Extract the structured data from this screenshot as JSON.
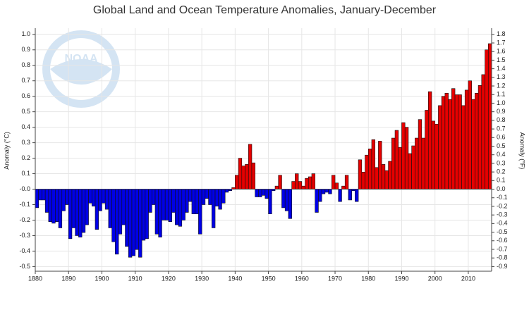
{
  "chart_data": {
    "type": "bar",
    "title": "Global Land and Ocean Temperature Anomalies, January-December",
    "y_label": "Anomaly (°C)",
    "y2_label": "Anomaly (°F)",
    "logo_text": "NOAA",
    "x": [
      1880,
      1881,
      1882,
      1883,
      1884,
      1885,
      1886,
      1887,
      1888,
      1889,
      1890,
      1891,
      1892,
      1893,
      1894,
      1895,
      1896,
      1897,
      1898,
      1899,
      1900,
      1901,
      1902,
      1903,
      1904,
      1905,
      1906,
      1907,
      1908,
      1909,
      1910,
      1911,
      1912,
      1913,
      1914,
      1915,
      1916,
      1917,
      1918,
      1919,
      1920,
      1921,
      1922,
      1923,
      1924,
      1925,
      1926,
      1927,
      1928,
      1929,
      1930,
      1931,
      1932,
      1933,
      1934,
      1935,
      1936,
      1937,
      1938,
      1939,
      1940,
      1941,
      1942,
      1943,
      1944,
      1945,
      1946,
      1947,
      1948,
      1949,
      1950,
      1951,
      1952,
      1953,
      1954,
      1955,
      1956,
      1957,
      1958,
      1959,
      1960,
      1961,
      1962,
      1963,
      1964,
      1965,
      1966,
      1967,
      1968,
      1969,
      1970,
      1971,
      1972,
      1973,
      1974,
      1975,
      1976,
      1977,
      1978,
      1979,
      1980,
      1981,
      1982,
      1983,
      1984,
      1985,
      1986,
      1987,
      1988,
      1989,
      1990,
      1991,
      1992,
      1993,
      1994,
      1995,
      1996,
      1997,
      1998,
      1999,
      2000,
      2001,
      2002,
      2003,
      2004,
      2005,
      2006,
      2007,
      2008,
      2009,
      2010,
      2011,
      2012,
      2013,
      2014,
      2015,
      2016
    ],
    "values": [
      -0.12,
      -0.07,
      -0.07,
      -0.15,
      -0.21,
      -0.22,
      -0.21,
      -0.25,
      -0.14,
      -0.1,
      -0.32,
      -0.25,
      -0.3,
      -0.31,
      -0.28,
      -0.23,
      -0.09,
      -0.11,
      -0.26,
      -0.14,
      -0.09,
      -0.13,
      -0.25,
      -0.34,
      -0.42,
      -0.29,
      -0.23,
      -0.37,
      -0.44,
      -0.43,
      -0.39,
      -0.44,
      -0.33,
      -0.32,
      -0.15,
      -0.1,
      -0.29,
      -0.31,
      -0.2,
      -0.2,
      -0.21,
      -0.15,
      -0.23,
      -0.24,
      -0.2,
      -0.15,
      -0.08,
      -0.16,
      -0.16,
      -0.29,
      -0.1,
      -0.06,
      -0.1,
      -0.25,
      -0.11,
      -0.13,
      -0.09,
      -0.02,
      -0.01,
      0.01,
      0.09,
      0.2,
      0.15,
      0.16,
      0.29,
      0.17,
      -0.05,
      -0.05,
      -0.04,
      -0.06,
      -0.16,
      -0.01,
      0.02,
      0.09,
      -0.12,
      -0.14,
      -0.19,
      0.05,
      0.1,
      0.05,
      0.02,
      0.07,
      0.08,
      0.1,
      -0.15,
      -0.08,
      -0.03,
      -0.02,
      -0.03,
      0.09,
      0.04,
      -0.08,
      0.02,
      0.09,
      -0.07,
      -0.01,
      -0.08,
      0.19,
      0.11,
      0.22,
      0.26,
      0.32,
      0.14,
      0.31,
      0.16,
      0.12,
      0.18,
      0.33,
      0.38,
      0.27,
      0.43,
      0.4,
      0.23,
      0.28,
      0.33,
      0.45,
      0.33,
      0.51,
      0.63,
      0.44,
      0.42,
      0.54,
      0.6,
      0.62,
      0.58,
      0.65,
      0.61,
      0.61,
      0.54,
      0.64,
      0.7,
      0.58,
      0.62,
      0.67,
      0.74,
      0.9,
      0.94
    ],
    "positive_color": "#e60000",
    "negative_color": "#0000e6",
    "xlim": [
      1880,
      2017
    ],
    "xticks": [
      1880,
      1890,
      1900,
      1910,
      1920,
      1930,
      1940,
      1950,
      1960,
      1970,
      1980,
      1990,
      2000,
      2010
    ],
    "ylim": [
      -0.53,
      1.04
    ],
    "yticks": [
      -0.5,
      -0.4,
      -0.3,
      -0.2,
      -0.1,
      {
        "value": 0,
        "label": "-0.0"
      },
      0.1,
      0.2,
      0.3,
      0.4,
      0.5,
      0.6,
      0.7,
      0.8,
      0.9,
      {
        "value": 1,
        "label": "1.0"
      }
    ],
    "y2lim": [
      -0.954,
      1.872
    ],
    "y2ticks": [
      -0.9,
      -0.8,
      -0.7,
      -0.6,
      -0.5,
      -0.4,
      -0.3,
      -0.2,
      -0.1,
      {
        "value": 0,
        "label": "0.0"
      },
      0.1,
      0.2,
      0.3,
      0.4,
      0.5,
      0.6,
      0.7,
      0.8,
      0.9,
      {
        "value": 1,
        "label": "1.0"
      },
      1.1,
      1.2,
      1.3,
      1.4,
      1.5,
      1.6,
      1.7,
      1.8
    ],
    "grid": true
  }
}
